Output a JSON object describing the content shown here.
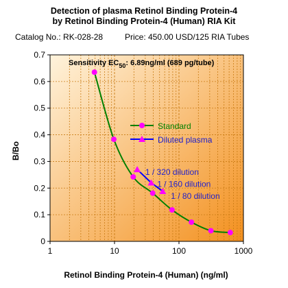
{
  "header": {
    "title_line1": "Detection of plasma Retinol Binding Protein-4",
    "title_line2": "by Retinol Binding Protein-4 (Human) RIA Kit",
    "catalog": "Catalog No.: RK-028-28",
    "price": "Price: 450.00 USD/125 RIA Tubes"
  },
  "colors": {
    "plot_bg_light": "#fff3dc",
    "plot_bg_dark": "#f3901e",
    "grid": "#c87a12",
    "standard_line": "#008000",
    "standard_marker": "#ff00ff",
    "diluted_line": "#0000ff",
    "diluted_marker": "#ff00ff",
    "annotation_text": "#1f1fcc"
  },
  "chart_data": {
    "type": "line",
    "x_scale": "log",
    "xlabel": "Retinol Binding Protein-4 (Human) (ng/ml)",
    "ylabel": "B/Bo",
    "xlim": [
      1,
      1000
    ],
    "ylim": [
      0,
      0.7
    ],
    "x_ticks": [
      "1",
      "10",
      "100",
      "1000"
    ],
    "y_ticks": [
      "0",
      "0.1",
      "0.2",
      "0.3",
      "0.4",
      "0.5",
      "0.6",
      "0.7"
    ],
    "grid": true,
    "legend_position": "center-right",
    "sensitivity": {
      "prefix": "Sensitivity EC",
      "subscript": "50",
      "value": ": 6.89ng/ml (689 pg/tube)"
    },
    "series": [
      {
        "name": "Standard",
        "x": [
          4.88,
          9.77,
          19.5,
          39.1,
          78.1,
          156,
          313,
          625
        ],
        "y": [
          0.635,
          0.383,
          0.242,
          0.181,
          0.118,
          0.072,
          0.04,
          0.033
        ]
      },
      {
        "name": "Diluted plasma",
        "x": [
          22.5,
          37,
          56
        ],
        "y": [
          0.27,
          0.22,
          0.188
        ]
      }
    ],
    "annotations": [
      {
        "text": "1 / 320 dilution",
        "x": 30,
        "y": 0.26
      },
      {
        "text": "1 / 160 dilution",
        "x": 46,
        "y": 0.215
      },
      {
        "text": "1 / 80 dilution",
        "x": 75,
        "y": 0.17
      }
    ]
  }
}
